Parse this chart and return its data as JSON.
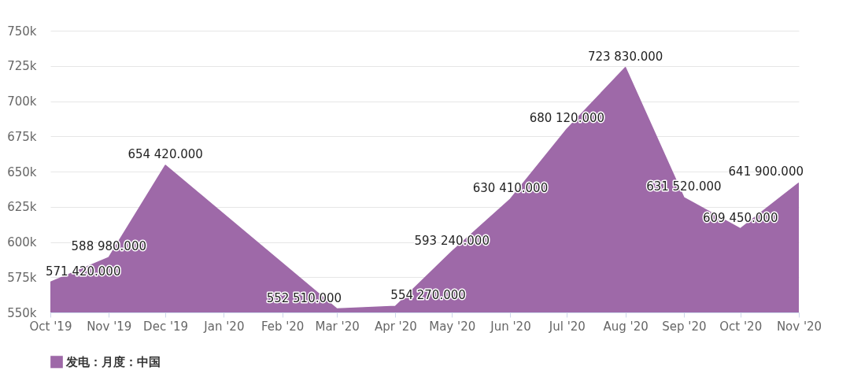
{
  "chart_data": {
    "type": "area",
    "x": [
      "2019-10",
      "2019-11",
      "2019-12",
      "2020-03",
      "2020-04",
      "2020-05",
      "2020-06",
      "2020-07",
      "2020-08",
      "2020-09",
      "2020-10",
      "2020-11"
    ],
    "series": [
      {
        "name": "发电：月度：中国",
        "color": "#9e69a8",
        "values": [
          571420,
          588980,
          654420,
          552510,
          554270,
          593240,
          630410,
          680120,
          723830,
          631520,
          609450,
          641900
        ],
        "value_labels": [
          "571 420.000",
          "588 980.000",
          "654 420.000",
          "552 510.000",
          "554 270.000",
          "593 240.000",
          "630 410.000",
          "680 120.000",
          "723 830.000",
          "631 520.000",
          "609 450.000",
          "641 900.000"
        ]
      }
    ],
    "xlim": [
      "2019-10",
      "2020-11"
    ],
    "xticks": [
      {
        "value": "2019-10",
        "label": "Oct '19"
      },
      {
        "value": "2019-11",
        "label": "Nov '19"
      },
      {
        "value": "2019-12",
        "label": "Dec '19"
      },
      {
        "value": "2020-01",
        "label": "Jan '20"
      },
      {
        "value": "2020-02",
        "label": "Feb '20"
      },
      {
        "value": "2020-03",
        "label": "Mar '20"
      },
      {
        "value": "2020-04",
        "label": "Apr '20"
      },
      {
        "value": "2020-05",
        "label": "May '20"
      },
      {
        "value": "2020-06",
        "label": "Jun '20"
      },
      {
        "value": "2020-07",
        "label": "Jul '20"
      },
      {
        "value": "2020-08",
        "label": "Aug '20"
      },
      {
        "value": "2020-09",
        "label": "Sep '20"
      },
      {
        "value": "2020-10",
        "label": "Oct '20"
      },
      {
        "value": "2020-11",
        "label": "Nov '20"
      }
    ],
    "ylim": [
      550000,
      750000
    ],
    "yticks": [
      {
        "value": 550000,
        "label": "550k"
      },
      {
        "value": 575000,
        "label": "575k"
      },
      {
        "value": 600000,
        "label": "600k"
      },
      {
        "value": 625000,
        "label": "625k"
      },
      {
        "value": 650000,
        "label": "650k"
      },
      {
        "value": 675000,
        "label": "675k"
      },
      {
        "value": 700000,
        "label": "700k"
      },
      {
        "value": 725000,
        "label": "725k"
      },
      {
        "value": 750000,
        "label": "750k"
      }
    ],
    "grid": "y",
    "legend": "bottom",
    "marker": "none"
  }
}
